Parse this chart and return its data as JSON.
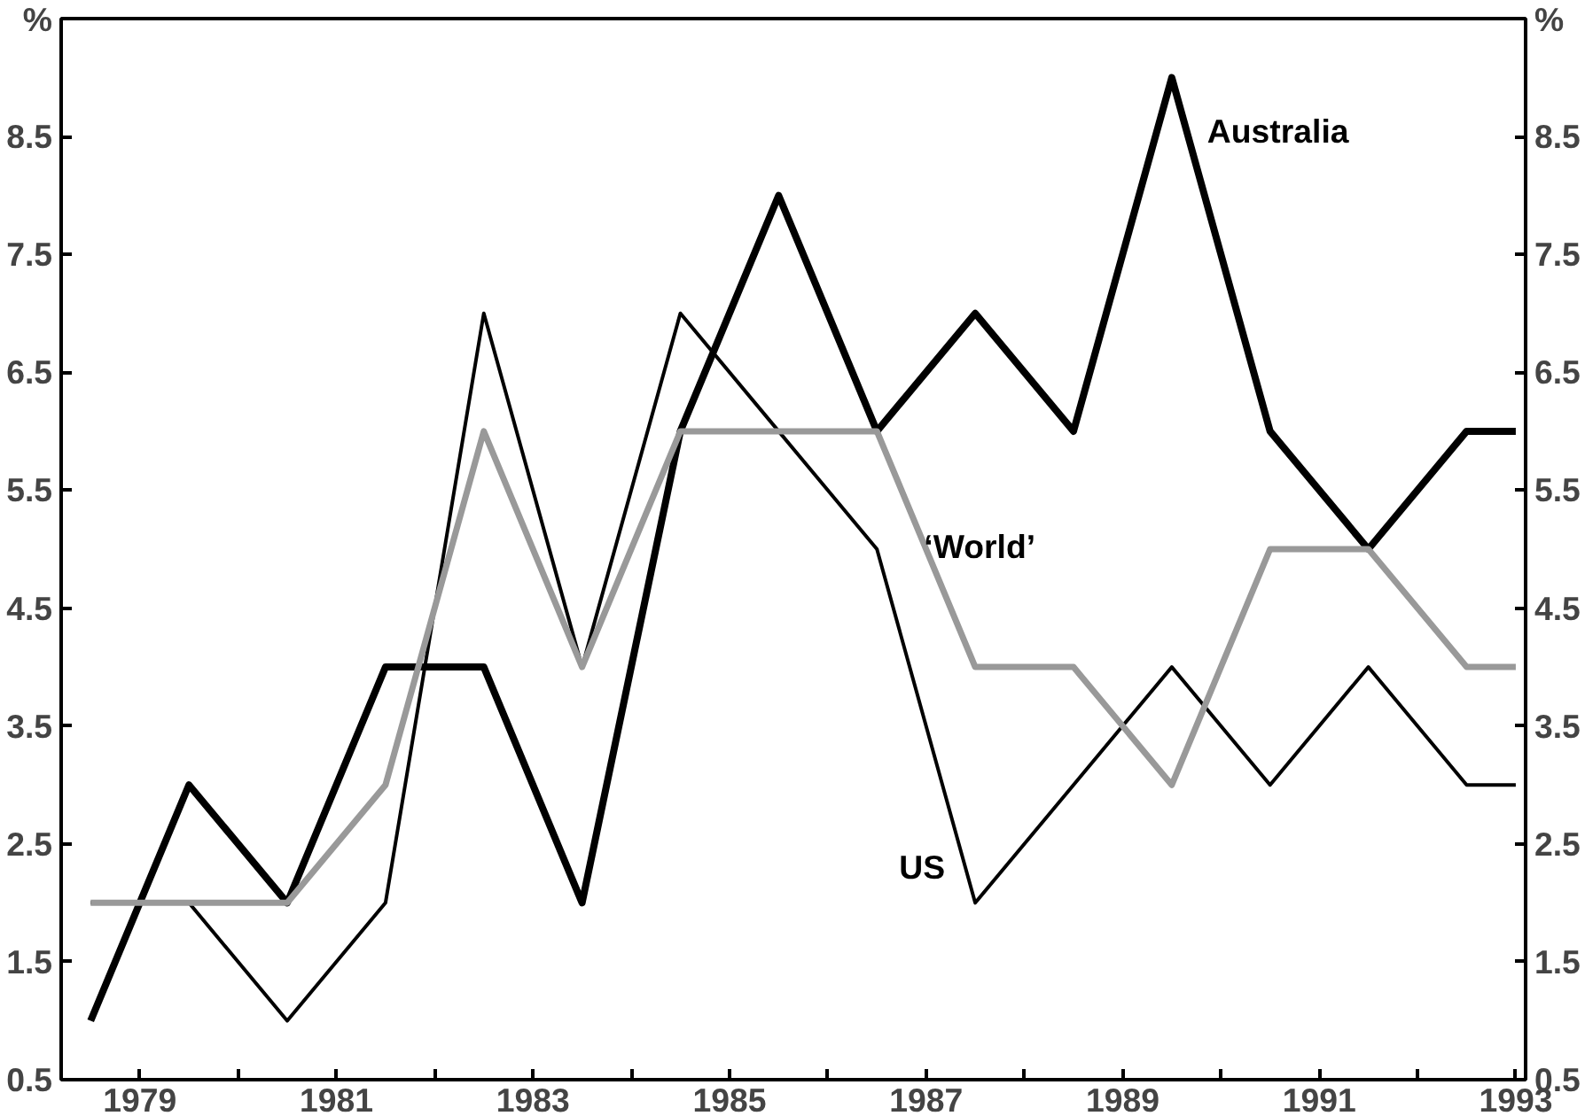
{
  "chart_data": {
    "type": "line",
    "x": [
      1978.5,
      1979.5,
      1980.5,
      1981.5,
      1982.5,
      1983.5,
      1984.5,
      1985.5,
      1986.5,
      1987.5,
      1988.5,
      1989.5,
      1990.5,
      1991.5,
      1992.5,
      1993.0
    ],
    "series": [
      {
        "name": "Australia",
        "color": "#000000",
        "values": [
          1,
          3,
          2,
          4,
          4,
          2,
          6,
          8,
          6,
          7,
          6,
          9,
          6,
          5,
          6,
          6
        ]
      },
      {
        "name": "US",
        "color": "#000000",
        "values": [
          2,
          2,
          1,
          2,
          7,
          4,
          7,
          6,
          5,
          2,
          3,
          4,
          3,
          4,
          3,
          3
        ]
      },
      {
        "name": "‘World’",
        "color": "#999999",
        "values": [
          2,
          2,
          2,
          3,
          6,
          4,
          6,
          6,
          6,
          4,
          4,
          3,
          5,
          5,
          4,
          4
        ]
      }
    ],
    "xlim": [
      1978.2,
      1993.1
    ],
    "xticks": [
      1979,
      {
        "value": 1980,
        "label": null
      },
      1981,
      {
        "value": 1982,
        "label": null
      },
      1983,
      {
        "value": 1984,
        "label": null
      },
      1985,
      {
        "value": 1986,
        "label": null
      },
      1987,
      {
        "value": 1988,
        "label": null
      },
      1989,
      {
        "value": 1990,
        "label": null
      },
      1991,
      {
        "value": 1992,
        "label": null
      },
      1993
    ],
    "ylim": [
      0.5,
      9.5
    ],
    "yticks": [
      0.5,
      1.5,
      2.5,
      3.5,
      4.5,
      5.5,
      6.5,
      7.5,
      8.5,
      {
        "value": 9.5,
        "label": "%"
      }
    ],
    "y2lim": [
      0.5,
      9.5
    ],
    "y2ticks": [
      0.5,
      1.5,
      2.5,
      3.5,
      4.5,
      5.5,
      6.5,
      7.5,
      8.5,
      {
        "value": 9.5,
        "label": "%"
      }
    ],
    "grid": false,
    "marker": "none",
    "line_style": "solid"
  }
}
